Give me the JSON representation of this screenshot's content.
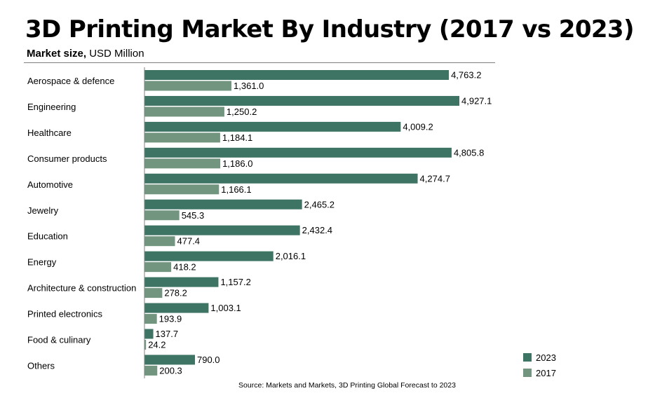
{
  "page": {
    "title": "3D Printing Market By Industry (2017 vs 2023)",
    "subtitle_bold": "Market size,",
    "subtitle_rest": " USD Million",
    "source": "Source: Markets and Markets, 3D Printing Global Forecast to 2023"
  },
  "colors": {
    "2023": "#3e7463",
    "2017": "#729580",
    "axis": "#808080"
  },
  "chart_data": {
    "type": "bar",
    "orientation": "horizontal",
    "title": "3D Printing Market By Industry (2017 vs 2023)",
    "ylabel": "Market size, USD Million",
    "categories": [
      "Aerospace & defence",
      "Engineering",
      "Healthcare",
      "Consumer products",
      "Automotive",
      "Jewelry",
      "Education",
      "Energy",
      "Architecture & construction",
      "Printed electronics",
      "Food & culinary",
      "Others"
    ],
    "series": [
      {
        "name": "2023",
        "values": [
          4763.2,
          4927.1,
          4009.2,
          4805.8,
          4274.7,
          2465.2,
          2432.4,
          2016.1,
          1157.2,
          1003.1,
          137.7,
          790.0
        ]
      },
      {
        "name": "2017",
        "values": [
          1361.0,
          1250.2,
          1184.1,
          1186.0,
          1166.1,
          545.3,
          477.4,
          418.2,
          278.2,
          193.9,
          24.2,
          200.3
        ]
      }
    ],
    "value_labels": {
      "2023": [
        "4,763.2",
        "4,927.1",
        "4,009.2",
        "4,805.8",
        "4,274.7",
        "2,465.2",
        "2,432.4",
        "2,016.1",
        "1,157.2",
        "1,003.1",
        "137.7",
        "790.0"
      ],
      "2017": [
        "1,361.0",
        "1,250.2",
        "1,184.1",
        "1,186.0",
        "1,166.1",
        "545.3",
        "477.4",
        "418.2",
        "278.2",
        "193.9",
        "24.2",
        "200.3"
      ]
    },
    "xlim": [
      0,
      5000
    ],
    "grid": false,
    "legend": {
      "position": "bottom-right",
      "entries": [
        "2023",
        "2017"
      ]
    }
  }
}
